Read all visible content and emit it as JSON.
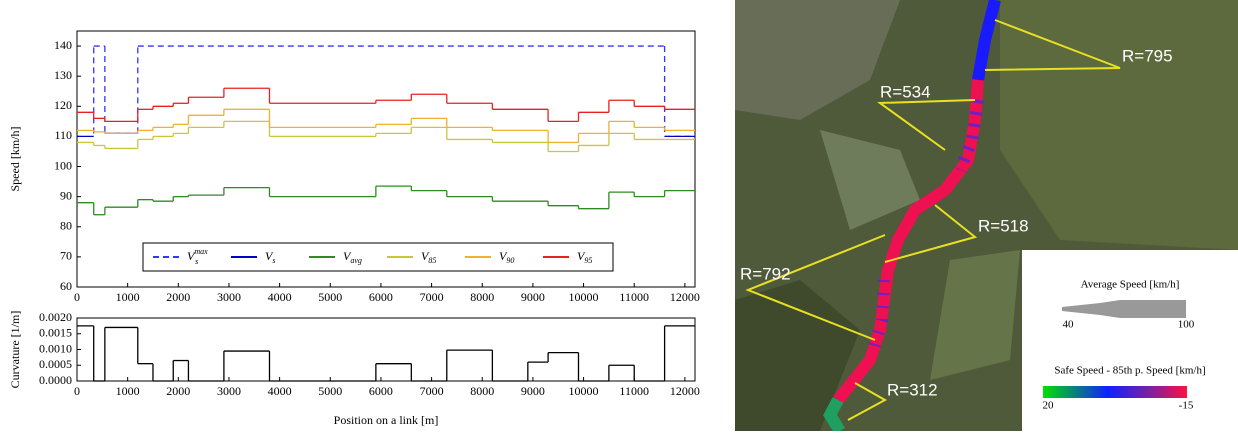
{
  "chart_data": [
    {
      "type": "step",
      "ylabel": "Speed [km/h]",
      "xlim": [
        0,
        12200
      ],
      "ylim": [
        60,
        145
      ],
      "xticks": [
        0,
        1000,
        2000,
        3000,
        4000,
        5000,
        6000,
        7000,
        8000,
        9000,
        10000,
        11000,
        12000
      ],
      "yticks": [
        60,
        70,
        80,
        90,
        100,
        110,
        120,
        130,
        140
      ],
      "legend": "lower center",
      "series": [
        {
          "name": "V",
          "sub": "s",
          "sup": "max",
          "color": "#3434ff",
          "linestyle": "dashed",
          "bins": [
            330,
            550,
            1200,
            11600,
            12200
          ],
          "values": [
            140,
            111,
            140,
            110
          ]
        },
        {
          "name": "V",
          "sub": "s",
          "color": "#0000c8",
          "linestyle": "solid",
          "bins": [
            0,
            330,
            550,
            1200,
            11600,
            12200
          ],
          "values": [
            110,
            null,
            111,
            null,
            110
          ]
        },
        {
          "name": "V",
          "sub": "avg",
          "color": "#2e8b22",
          "linestyle": "solid",
          "bins": [
            0,
            330,
            550,
            1200,
            1500,
            1900,
            2200,
            2900,
            3800,
            5900,
            6600,
            7300,
            8200,
            9300,
            9900,
            10500,
            11000,
            11600,
            12200
          ],
          "values": [
            88,
            84,
            86.5,
            89,
            88.5,
            90,
            90.5,
            93,
            90,
            93.5,
            92,
            90,
            88.5,
            87,
            86,
            91.5,
            90,
            92
          ]
        },
        {
          "name": "V",
          "sub": "85",
          "color": "#c8c83c",
          "linestyle": "solid",
          "bins": [
            0,
            330,
            550,
            1200,
            1500,
            1900,
            2200,
            2900,
            3800,
            5900,
            6600,
            7300,
            8200,
            9300,
            9900,
            10500,
            11000,
            11600,
            12200
          ],
          "values": [
            108,
            107,
            106,
            109,
            110,
            111,
            113,
            115,
            110,
            111,
            113,
            109,
            108,
            105,
            107,
            111,
            109,
            109
          ]
        },
        {
          "name": "V",
          "sub": "90",
          "color": "#f0b030",
          "linestyle": "solid",
          "bins": [
            0,
            330,
            550,
            1200,
            1500,
            1900,
            2200,
            2900,
            3800,
            5900,
            6600,
            7300,
            8200,
            9300,
            9900,
            10500,
            11000,
            11600,
            12200
          ],
          "values": [
            112,
            111.5,
            111,
            112,
            113,
            114,
            117,
            119,
            113,
            114,
            116,
            113,
            112,
            108,
            111,
            115,
            113,
            112
          ]
        },
        {
          "name": "V",
          "sub": "95",
          "color": "#e82020",
          "linestyle": "solid",
          "bins": [
            0,
            330,
            550,
            1200,
            1500,
            1900,
            2200,
            2900,
            3800,
            5900,
            6600,
            7300,
            8200,
            9300,
            9900,
            10500,
            11000,
            11600,
            12200
          ],
          "values": [
            118,
            116,
            115,
            119,
            120,
            121,
            123,
            126,
            121,
            122,
            124,
            121,
            119,
            115,
            118,
            122,
            120,
            119
          ]
        }
      ]
    },
    {
      "type": "step",
      "ylabel": "Curvature [1/m]",
      "xlabel": "Position on a link [m]",
      "xlim": [
        0,
        12200
      ],
      "ylim": [
        0,
        0.002
      ],
      "xticks": [
        0,
        1000,
        2000,
        3000,
        4000,
        5000,
        6000,
        7000,
        8000,
        9000,
        10000,
        11000,
        12000
      ],
      "yticks": [
        {
          "value": 0,
          "label": "0.0000"
        },
        {
          "value": 0.0005,
          "label": "0.0005"
        },
        {
          "value": 0.001,
          "label": "0.0010"
        },
        {
          "value": 0.0015,
          "label": "0.0015"
        },
        {
          "value": 0.002,
          "label": "0.0020"
        }
      ],
      "series": [
        {
          "color": "#000000",
          "linestyle": "solid",
          "bins": [
            0,
            330,
            550,
            1200,
            1500,
            1900,
            2200,
            2900,
            3800,
            5900,
            6600,
            7300,
            8200,
            8900,
            9300,
            9900,
            10500,
            11000,
            11600,
            12200
          ],
          "values": [
            0.00175,
            0,
            0.0017,
            0.00055,
            0,
            0.00065,
            0,
            0.00095,
            0,
            0.00055,
            0,
            0.00098,
            0,
            0.0006,
            0.0009,
            0,
            0.0005,
            0,
            0.00175
          ]
        }
      ]
    }
  ],
  "map": {
    "labels": [
      "R=795",
      "R=534",
      "R=518",
      "R=792",
      "R=312"
    ],
    "legend": {
      "width_title": "Average Speed [km/h]",
      "width_min": "40",
      "width_max": "100",
      "color_title": "Safe Speed - 85th p. Speed [km/h]",
      "color_min": "20",
      "color_max": "-15"
    }
  }
}
